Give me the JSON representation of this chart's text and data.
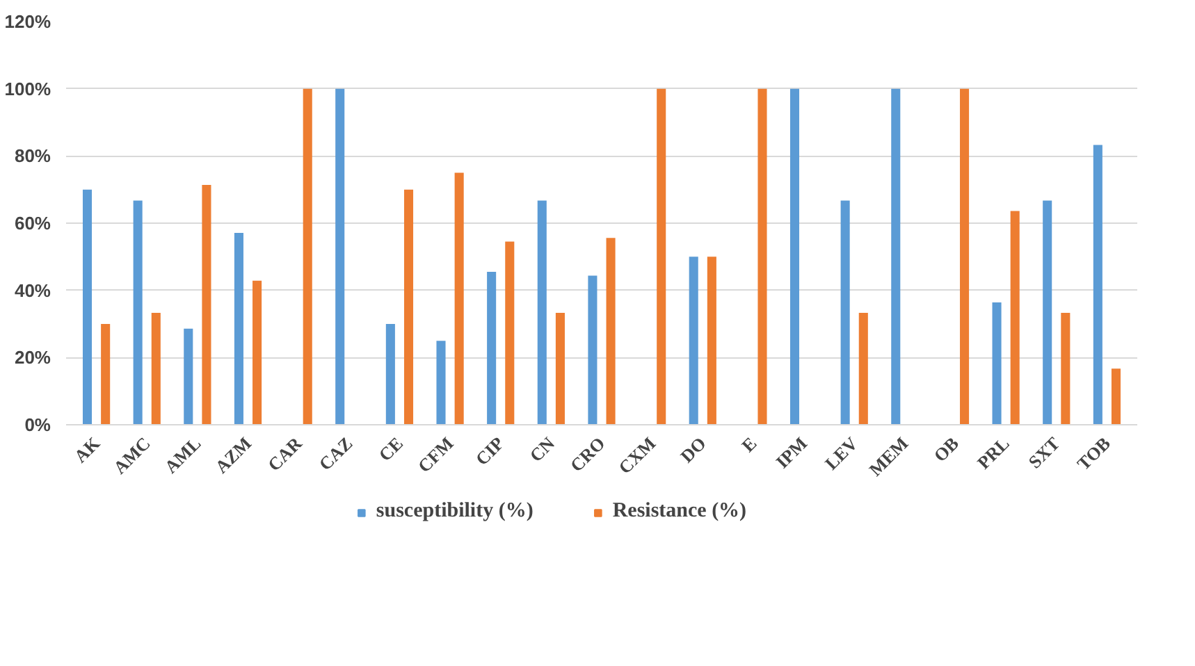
{
  "chart_data": {
    "type": "bar",
    "categories": [
      "AK",
      "AMC",
      "AML",
      "AZM",
      "CAR",
      "CAZ",
      "CE",
      "CFM",
      "CIP",
      "CN",
      "CRO",
      "CXM",
      "DO",
      "E",
      "IPM",
      "LEV",
      "MEM",
      "OB",
      "PRL",
      "SXT",
      "TOB"
    ],
    "series": [
      {
        "name": "susceptibility (%)",
        "color": "#5b9bd5",
        "values": [
          70,
          66.7,
          28.6,
          57.1,
          0,
          100,
          30,
          25,
          45.5,
          66.7,
          44.4,
          0,
          50,
          0,
          100,
          66.7,
          100,
          0,
          36.4,
          66.7,
          83.3
        ]
      },
      {
        "name": "Resistance (%)",
        "color": "#ed7d31",
        "values": [
          30,
          33.3,
          71.4,
          42.9,
          100,
          0,
          70,
          75,
          54.5,
          33.3,
          55.6,
          100,
          50,
          100,
          0,
          33.3,
          0,
          100,
          63.6,
          33.3,
          16.7
        ]
      }
    ],
    "ylim": [
      0,
      120
    ],
    "yticks": [
      {
        "value": 0,
        "label": "0%"
      },
      {
        "value": 20,
        "label": "20%"
      },
      {
        "value": 40,
        "label": "40%"
      },
      {
        "value": 60,
        "label": "60%"
      },
      {
        "value": 80,
        "label": "80%"
      },
      {
        "value": 100,
        "label": "100%"
      },
      {
        "value": 120,
        "label": "120%"
      }
    ],
    "grid": "y",
    "legend": "bottom"
  }
}
